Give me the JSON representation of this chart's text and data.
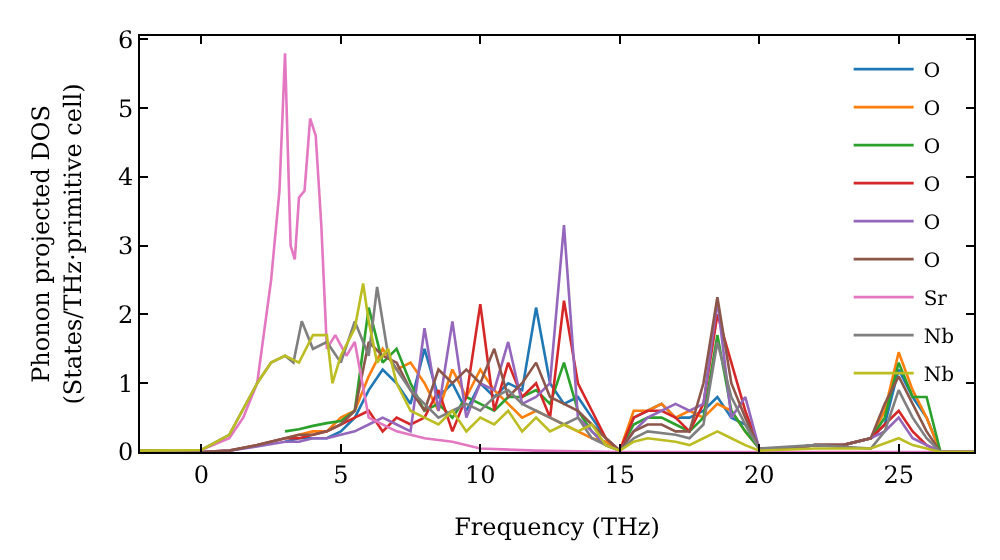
{
  "chart_data": {
    "type": "line",
    "xlabel": "Frequency (THz)",
    "ylabel": "Phonon projected DOS\n(States/THz·primitive cell)",
    "x": [
      -2.2,
      0,
      1,
      2,
      3,
      3.5,
      4,
      4.5,
      5,
      5.5,
      6,
      6.5,
      7,
      7.5,
      8,
      8.5,
      9,
      9.5,
      10,
      10.5,
      11,
      11.5,
      12,
      12.5,
      13,
      13.5,
      14,
      14.5,
      15,
      15.5,
      16,
      16.5,
      17,
      17.5,
      18,
      18.5,
      19,
      19.5,
      20,
      21,
      22,
      23,
      24,
      24.5,
      25,
      25.5,
      26,
      26.5,
      27.7
    ],
    "xlim": [
      -2.2,
      27.7
    ],
    "xticks": [
      0,
      5,
      10,
      15,
      20,
      25
    ],
    "ylim": [
      0,
      6.05
    ],
    "yticks": [
      0,
      1,
      2,
      3,
      4,
      5,
      6
    ],
    "legend": "top right",
    "marker": "none",
    "line_style": "solid",
    "series": [
      {
        "name": "O",
        "color": "#1f77b4",
        "values": [
          null,
          null,
          null,
          null,
          0.15,
          0.2,
          0.2,
          0.2,
          0.3,
          0.5,
          0.9,
          1.2,
          1.0,
          0.7,
          1.5,
          0.8,
          1.0,
          0.6,
          1.0,
          0.8,
          1.0,
          0.9,
          2.1,
          1.0,
          0.7,
          0.8,
          0.5,
          0.2,
          0.02,
          0.5,
          0.6,
          0.7,
          0.5,
          0.5,
          0.6,
          0.8,
          0.5,
          0.4,
          0.05,
          0.05,
          0.1,
          0.1,
          0.2,
          0.4,
          1.2,
          0.8,
          0.5,
          0,
          0
        ]
      },
      {
        "name": "O",
        "color": "#ff7f0e",
        "values": [
          null,
          null,
          null,
          null,
          0.2,
          0.25,
          0.3,
          0.3,
          0.5,
          0.6,
          1.1,
          1.5,
          1.2,
          1.3,
          1.0,
          0.6,
          1.2,
          0.8,
          1.2,
          0.9,
          0.7,
          0.5,
          0.6,
          0.5,
          0.4,
          0.3,
          0.2,
          0.15,
          0.02,
          0.6,
          0.6,
          0.7,
          0.5,
          0.6,
          0.5,
          0.7,
          0.6,
          0.3,
          0.05,
          0.05,
          0.1,
          0.1,
          0.2,
          0.6,
          1.45,
          0.9,
          0.5,
          0,
          0
        ]
      },
      {
        "name": "O",
        "color": "#2ca02c",
        "values": [
          null,
          null,
          null,
          null,
          0.3,
          0.33,
          0.38,
          0.42,
          0.45,
          0.6,
          2.1,
          1.3,
          1.5,
          1.0,
          0.6,
          0.7,
          0.5,
          0.8,
          0.7,
          0.6,
          0.8,
          0.8,
          0.9,
          0.7,
          1.3,
          0.6,
          0.3,
          0.1,
          0.02,
          0.4,
          0.5,
          0.5,
          0.4,
          0.3,
          0.5,
          1.7,
          0.6,
          0.3,
          0.05,
          0.05,
          0.1,
          0.1,
          0.2,
          0.5,
          1.3,
          0.8,
          0.8,
          0,
          0
        ]
      },
      {
        "name": "O",
        "color": "#d62728",
        "values": [
          0,
          0,
          0.02,
          0.1,
          0.2,
          0.2,
          0.25,
          0.3,
          0.4,
          0.5,
          0.6,
          0.3,
          0.5,
          0.4,
          0.5,
          0.9,
          0.3,
          0.8,
          2.15,
          0.6,
          1.3,
          0.8,
          1.0,
          0.5,
          2.2,
          1.0,
          0.6,
          0.2,
          0.02,
          0.5,
          0.6,
          0.6,
          0.5,
          0.3,
          0.7,
          2.0,
          1.3,
          0.6,
          0.05,
          0.05,
          0.1,
          0.1,
          0.2,
          0.4,
          0.6,
          0.3,
          0.1,
          0,
          0
        ]
      },
      {
        "name": "O",
        "color": "#9467bd",
        "values": [
          0,
          0,
          0.02,
          0.08,
          0.15,
          0.15,
          0.2,
          0.2,
          0.25,
          0.3,
          0.4,
          0.5,
          0.4,
          0.3,
          1.8,
          0.6,
          1.9,
          0.5,
          1.0,
          0.9,
          1.6,
          0.7,
          0.8,
          1.0,
          3.3,
          0.5,
          0.3,
          0.1,
          0.02,
          0.3,
          0.5,
          0.6,
          0.7,
          0.6,
          0.7,
          2.2,
          0.5,
          0.8,
          0.05,
          0.05,
          0.1,
          0.1,
          0.2,
          0.3,
          0.5,
          0.2,
          0.1,
          0,
          0
        ]
      },
      {
        "name": "O",
        "color": "#8c564b",
        "values": [
          0,
          0,
          0.02,
          0.1,
          0.2,
          0.25,
          0.25,
          0.3,
          0.4,
          0.6,
          1.6,
          1.4,
          1.3,
          0.9,
          0.6,
          1.2,
          1.0,
          1.2,
          1.0,
          1.5,
          0.8,
          1.0,
          1.3,
          0.8,
          0.7,
          0.6,
          0.4,
          0.2,
          0.02,
          0.3,
          0.4,
          0.4,
          0.3,
          0.3,
          1.0,
          2.25,
          1.0,
          0.5,
          0.05,
          0.05,
          0.1,
          0.1,
          0.2,
          0.7,
          1.1,
          0.7,
          0.3,
          0,
          0
        ]
      },
      {
        "name": "Sr",
        "color": "#e377c2",
        "x": [
          -2.2,
          0,
          1,
          1.5,
          2,
          2.5,
          2.8,
          3.0,
          3.2,
          3.35,
          3.5,
          3.7,
          3.9,
          4.1,
          4.3,
          4.5,
          4.8,
          5.2,
          5.5,
          6,
          7,
          8,
          9,
          10,
          12,
          15,
          20,
          27.7
        ],
        "values": [
          0.02,
          0.03,
          0.2,
          0.5,
          1.0,
          2.5,
          3.8,
          5.8,
          3.0,
          2.8,
          3.7,
          3.8,
          4.85,
          4.6,
          3.3,
          1.5,
          1.7,
          1.4,
          1.6,
          0.5,
          0.3,
          0.2,
          0.15,
          0.05,
          0.02,
          0,
          0,
          0
        ]
      },
      {
        "name": "Nb",
        "color": "#7f7f7f",
        "x": [
          -2.2,
          0,
          1,
          2,
          2.5,
          3,
          3.3,
          3.6,
          4,
          4.5,
          5,
          5.5,
          6,
          6.3,
          6.7,
          7,
          7.5,
          8,
          8.5,
          9,
          9.5,
          10,
          10.5,
          11,
          11.5,
          12,
          12.5,
          13,
          13.5,
          14,
          14.5,
          15,
          15.5,
          16,
          17,
          17.5,
          18,
          18.5,
          19,
          19.5,
          20,
          22,
          24,
          24.5,
          25,
          25.5,
          26,
          26.5,
          27.7
        ],
        "values": [
          0.02,
          0.03,
          0.25,
          1.0,
          1.3,
          1.4,
          1.3,
          1.9,
          1.5,
          1.6,
          1.3,
          1.9,
          1.4,
          2.4,
          1.4,
          1.2,
          0.9,
          0.7,
          0.5,
          0.6,
          0.7,
          0.6,
          0.8,
          0.9,
          0.7,
          0.6,
          0.5,
          0.4,
          0.5,
          0.2,
          0.1,
          0.02,
          0.2,
          0.3,
          0.25,
          0.2,
          0.4,
          1.6,
          0.8,
          0.4,
          0.05,
          0.1,
          0.05,
          0.3,
          0.9,
          0.5,
          0.2,
          0,
          0
        ]
      },
      {
        "name": "Nb",
        "color": "#bcbd22",
        "x": [
          -2.2,
          0,
          1,
          2,
          2.5,
          3,
          3.5,
          4,
          4.5,
          4.7,
          5,
          5.5,
          5.8,
          6,
          6.3,
          6.7,
          7,
          7.5,
          8,
          8.5,
          9,
          9.5,
          10,
          10.5,
          11,
          11.5,
          12,
          12.5,
          13,
          13.5,
          14,
          14.5,
          15,
          15.5,
          16,
          17,
          17.5,
          18,
          18.5,
          19,
          19.5,
          20,
          22,
          24,
          25,
          25.5,
          26,
          26.5,
          27.7
        ],
        "values": [
          0.02,
          0.03,
          0.25,
          1.0,
          1.3,
          1.4,
          1.3,
          1.7,
          1.7,
          1.0,
          1.4,
          1.8,
          2.45,
          1.9,
          1.3,
          1.5,
          1.0,
          0.6,
          0.5,
          0.4,
          0.6,
          0.3,
          0.5,
          0.4,
          0.6,
          0.3,
          0.5,
          0.3,
          0.4,
          0.3,
          0.4,
          0.1,
          0.02,
          0.15,
          0.2,
          0.15,
          0.1,
          0.2,
          0.3,
          0.2,
          0.1,
          0.02,
          0.05,
          0.05,
          0.2,
          0.1,
          0.05,
          0,
          0
        ]
      }
    ]
  }
}
